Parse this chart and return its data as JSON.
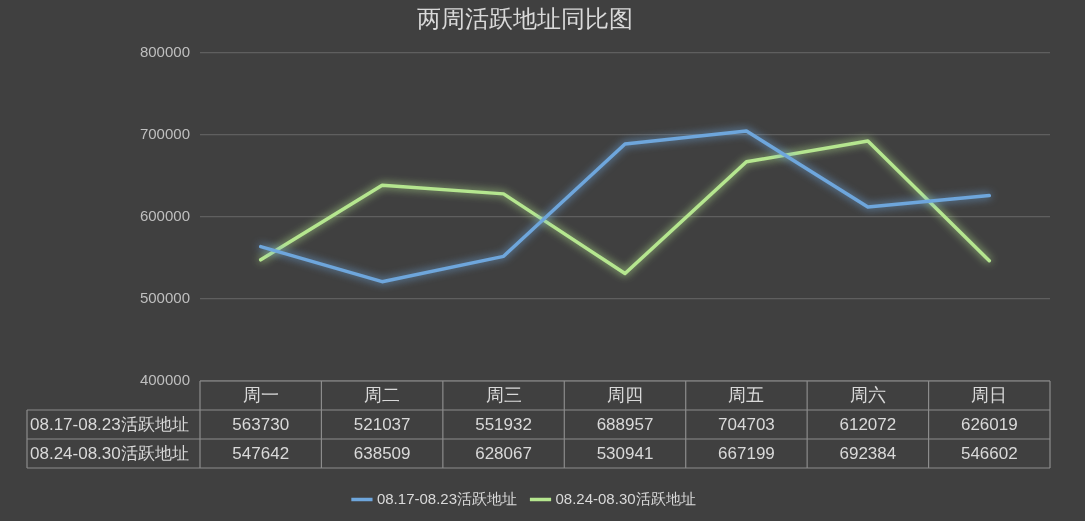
{
  "chart_data": {
    "type": "line",
    "title": "两周活跃地址同比图",
    "categories": [
      "周一",
      "周二",
      "周三",
      "周四",
      "周五",
      "周六",
      "周日"
    ],
    "series": [
      {
        "name": "08.17-08.23活跃地址",
        "color": "#6ea6dc",
        "values": [
          563730,
          521037,
          551932,
          688957,
          704703,
          612072,
          626019
        ]
      },
      {
        "name": "08.24-08.30活跃地址",
        "color": "#b5e68f",
        "values": [
          547642,
          638509,
          628067,
          530941,
          667199,
          692384,
          546602
        ]
      }
    ],
    "ylim": [
      400000,
      800000
    ],
    "yticks": [
      400000,
      500000,
      600000,
      700000,
      800000
    ],
    "grid": "y",
    "legend": "bottom",
    "data_labels": true,
    "marker": "none",
    "line_style": "solid"
  }
}
